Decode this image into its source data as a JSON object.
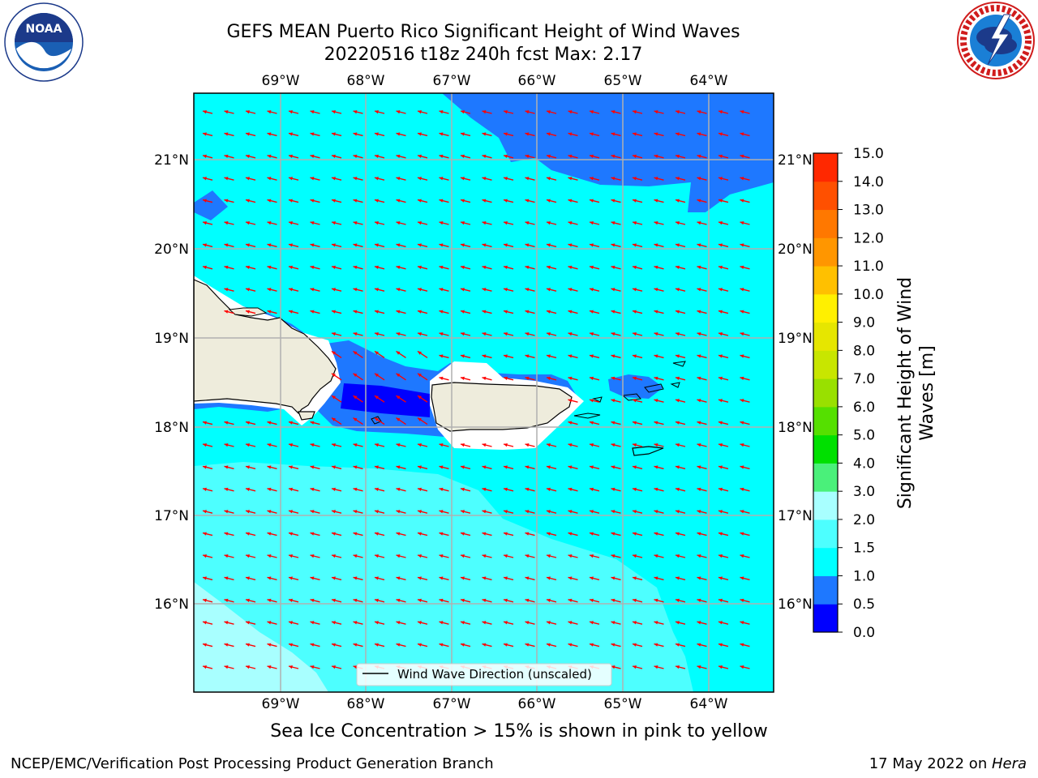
{
  "header": {
    "title_line1": "GEFS MEAN Puerto Rico Significant Height of Wind Waves",
    "title_line2": "20220516 t18z 240h fcst   Max: 2.17"
  },
  "logos": {
    "noaa": {
      "text": "NOAA",
      "ring_text": "NATIONAL OCEANIC AND ATMOSPHERIC ADMINISTRATION · U.S. DEPARTMENT OF COMMERCE"
    },
    "nws": {
      "ring_text": "NATIONAL WEATHER SERVICE"
    }
  },
  "map": {
    "lon_labels": [
      "69°W",
      "68°W",
      "67°W",
      "66°W",
      "65°W",
      "64°W"
    ],
    "lat_labels": [
      "21°N",
      "20°N",
      "19°N",
      "18°N",
      "17°N",
      "16°N"
    ],
    "legend_label": "Wind Wave Direction (unscaled)",
    "colors": {
      "land": "#eeecdc",
      "vector": "#ff0000",
      "grid": "#b0b0b0"
    }
  },
  "colorbar": {
    "label_line1": "Significant Height of Wind",
    "label_line2": "Waves [m]",
    "ticks": [
      "0.0",
      "0.5",
      "1.0",
      "1.5",
      "2.0",
      "3.0",
      "4.0",
      "5.0",
      "6.0",
      "7.0",
      "8.0",
      "9.0",
      "10.0",
      "11.0",
      "12.0",
      "13.0",
      "14.0",
      "15.0"
    ],
    "colors": [
      "#0000ff",
      "#1e78ff",
      "#00ffff",
      "#4dffff",
      "#a8ffff",
      "#4af07a",
      "#00e000",
      "#55e000",
      "#99e000",
      "#c8e600",
      "#e6e600",
      "#fff000",
      "#ffc000",
      "#ff9600",
      "#ff7800",
      "#ff5000",
      "#ff2800"
    ]
  },
  "footer": {
    "ice_note": "Sea Ice Concentration > 15% is shown in pink to yellow",
    "credit": "NCEP/EMC/Verification Post Processing Product Generation Branch",
    "date_prefix": "17 May 2022 on ",
    "machine": "Hera"
  }
}
